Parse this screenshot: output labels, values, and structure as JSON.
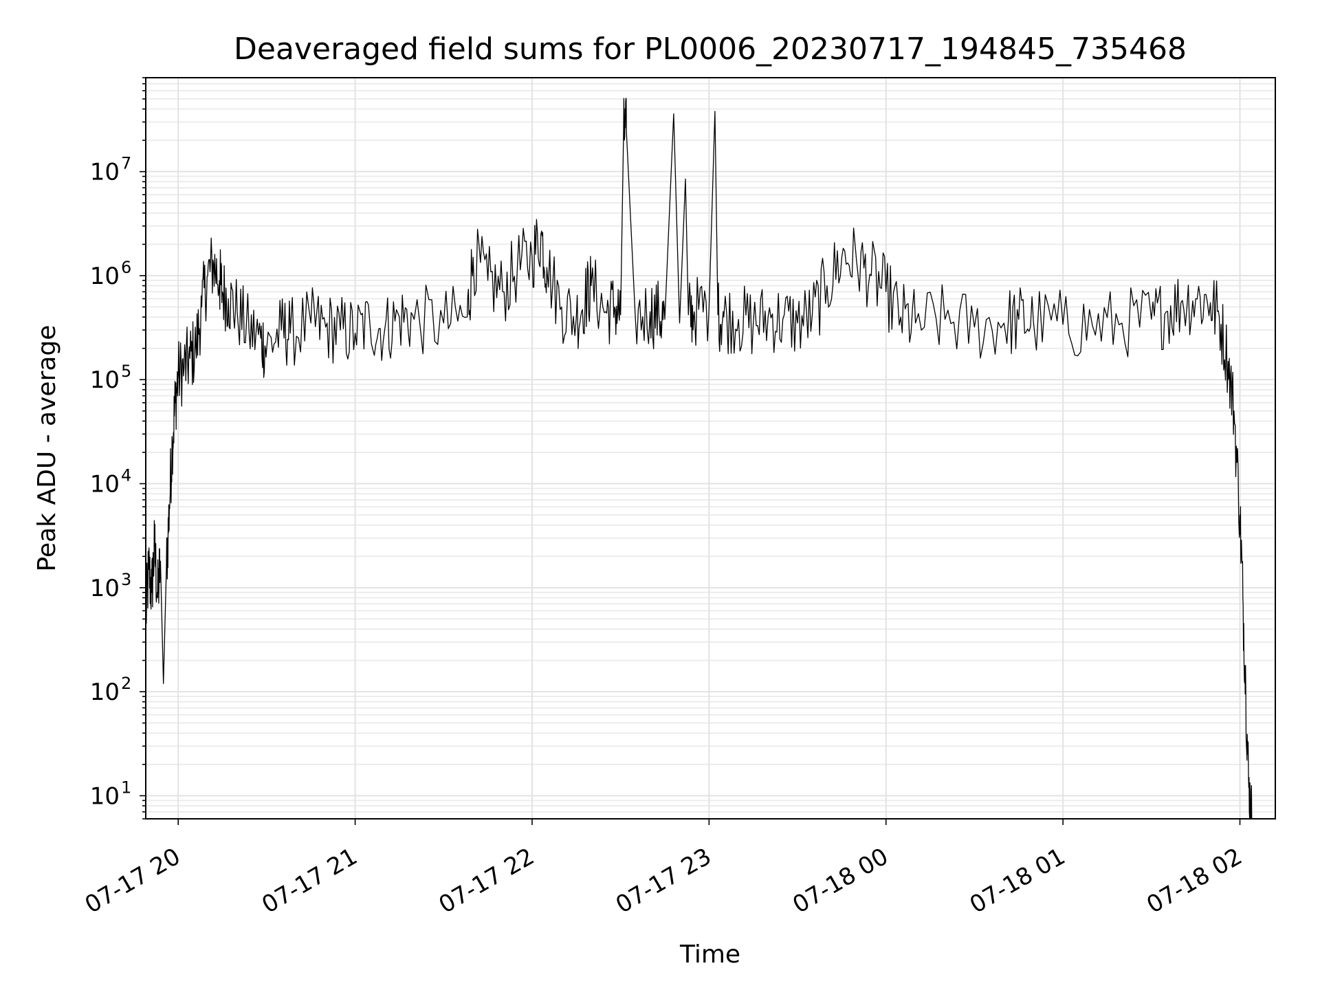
{
  "chart_data": {
    "type": "line",
    "title": "Deaveraged field sums for PL0006_20230717_194845_735468",
    "xlabel": "Time",
    "ylabel": "Peak ADU - average",
    "yscale": "log",
    "ylim": [
      6,
      80000000
    ],
    "xlim": [
      "2023-07-17T19:49:00",
      "2023-07-18T02:12:00"
    ],
    "grid": true,
    "legend": "none",
    "line_color": "#000000",
    "x_ticks": [
      "2023-07-17T20:00:00",
      "2023-07-17T21:00:00",
      "2023-07-17T22:00:00",
      "2023-07-17T23:00:00",
      "2023-07-18T00:00:00",
      "2023-07-18T01:00:00",
      "2023-07-18T02:00:00"
    ],
    "x_tick_labels": [
      "07-17 20",
      "07-17 21",
      "07-17 22",
      "07-17 23",
      "07-18 00",
      "07-18 01",
      "07-18 02"
    ],
    "y_ticks": [
      10,
      100,
      1000,
      10000,
      100000,
      1000000,
      10000000
    ],
    "y_tick_labels": [
      {
        "base": "10",
        "exp": "1"
      },
      {
        "base": "10",
        "exp": "2"
      },
      {
        "base": "10",
        "exp": "3"
      },
      {
        "base": "10",
        "exp": "4"
      },
      {
        "base": "10",
        "exp": "5"
      },
      {
        "base": "10",
        "exp": "6"
      },
      {
        "base": "10",
        "exp": "7"
      }
    ],
    "series": [
      {
        "x": [
          "2023-07-17T19:49:00",
          "2023-07-17T19:50:00",
          "2023-07-17T19:51:00",
          "2023-07-17T19:52:00",
          "2023-07-17T19:53:00",
          "2023-07-17T19:54:00",
          "2023-07-17T19:55:00",
          "2023-07-17T19:56:00",
          "2023-07-17T19:57:00",
          "2023-07-17T19:58:00",
          "2023-07-17T19:59:00",
          "2023-07-17T20:00:00",
          "2023-07-17T20:02:00",
          "2023-07-17T20:04:00",
          "2023-07-17T20:06:00",
          "2023-07-17T20:08:00",
          "2023-07-17T20:10:00",
          "2023-07-17T20:12:00",
          "2023-07-17T20:14:00",
          "2023-07-17T20:15:00",
          "2023-07-17T20:17:00",
          "2023-07-17T20:20:00",
          "2023-07-17T20:24:00",
          "2023-07-17T20:28:00",
          "2023-07-17T20:30:00",
          "2023-07-17T20:35:00",
          "2023-07-17T20:38:00",
          "2023-07-17T20:45:00",
          "2023-07-17T20:50:00",
          "2023-07-17T20:55:00",
          "2023-07-17T21:00:00",
          "2023-07-17T21:05:00",
          "2023-07-17T21:10:00",
          "2023-07-17T21:15:00",
          "2023-07-17T21:20:00",
          "2023-07-17T21:30:00",
          "2023-07-17T21:38:00",
          "2023-07-17T21:40:00",
          "2023-07-17T21:45:00",
          "2023-07-17T21:50:00",
          "2023-07-17T21:55:00",
          "2023-07-17T22:00:00",
          "2023-07-17T22:03:00",
          "2023-07-17T22:05:00",
          "2023-07-17T22:10:00",
          "2023-07-17T22:15:00",
          "2023-07-17T22:18:00",
          "2023-07-17T22:20:00",
          "2023-07-17T22:25:00",
          "2023-07-17T22:28:00",
          "2023-07-17T22:30:00",
          "2023-07-17T22:31:00",
          "2023-07-17T22:32:00",
          "2023-07-17T22:35:00",
          "2023-07-17T22:40:00",
          "2023-07-17T22:43:00",
          "2023-07-17T22:45:00",
          "2023-07-17T22:48:00",
          "2023-07-17T22:50:00",
          "2023-07-17T22:52:00",
          "2023-07-17T22:53:00",
          "2023-07-17T22:55:00",
          "2023-07-17T23:00:00",
          "2023-07-17T23:02:00",
          "2023-07-17T23:03:00",
          "2023-07-17T23:05:00",
          "2023-07-17T23:10:00",
          "2023-07-17T23:15:00",
          "2023-07-17T23:20:00",
          "2023-07-17T23:25:00",
          "2023-07-17T23:30:00",
          "2023-07-17T23:35:00",
          "2023-07-17T23:40:00",
          "2023-07-17T23:45:00",
          "2023-07-17T23:50:00",
          "2023-07-17T23:55:00",
          "2023-07-18T00:00:00",
          "2023-07-18T00:05:00",
          "2023-07-18T00:10:00",
          "2023-07-18T00:20:00",
          "2023-07-18T00:30:00",
          "2023-07-18T00:40:00",
          "2023-07-18T00:45:00",
          "2023-07-18T00:50:00",
          "2023-07-18T01:00:00",
          "2023-07-18T01:10:00",
          "2023-07-18T01:20:00",
          "2023-07-18T01:30:00",
          "2023-07-18T01:35:00",
          "2023-07-18T01:40:00",
          "2023-07-18T01:45:00",
          "2023-07-18T01:50:00",
          "2023-07-18T01:53:00",
          "2023-07-18T01:56:00",
          "2023-07-18T01:58:00",
          "2023-07-18T02:00:00",
          "2023-07-18T02:01:00",
          "2023-07-18T02:02:00",
          "2023-07-18T02:03:00",
          "2023-07-18T02:04:00"
        ],
        "y": [
          500,
          1500,
          900,
          2500,
          800,
          1800,
          120,
          1500,
          6000,
          25000,
          60000,
          110000,
          130000,
          160000,
          200000,
          500000,
          1000000,
          1300000,
          900000,
          700000,
          600000,
          450000,
          300000,
          250000,
          200000,
          300000,
          280000,
          350000,
          320000,
          300000,
          280000,
          350000,
          300000,
          400000,
          380000,
          350000,
          400000,
          1500000,
          900000,
          700000,
          1200000,
          1500000,
          2500000,
          1200000,
          500000,
          400000,
          600000,
          800000,
          450000,
          500000,
          420000,
          24000000,
          24000000,
          400000,
          450000,
          420000,
          380000,
          36000000,
          350000,
          8500000,
          420000,
          450000,
          500000,
          38000000,
          420000,
          400000,
          380000,
          350000,
          400000,
          380000,
          350000,
          420000,
          800000,
          1500000,
          1400000,
          1000000,
          700000,
          400000,
          350000,
          380000,
          320000,
          350000,
          380000,
          360000,
          340000,
          330000,
          350000,
          380000,
          450000,
          550000,
          600000,
          550000,
          400000,
          150000,
          50000,
          5000,
          800,
          100,
          12,
          6
        ],
        "samples_between": 10
      }
    ]
  }
}
